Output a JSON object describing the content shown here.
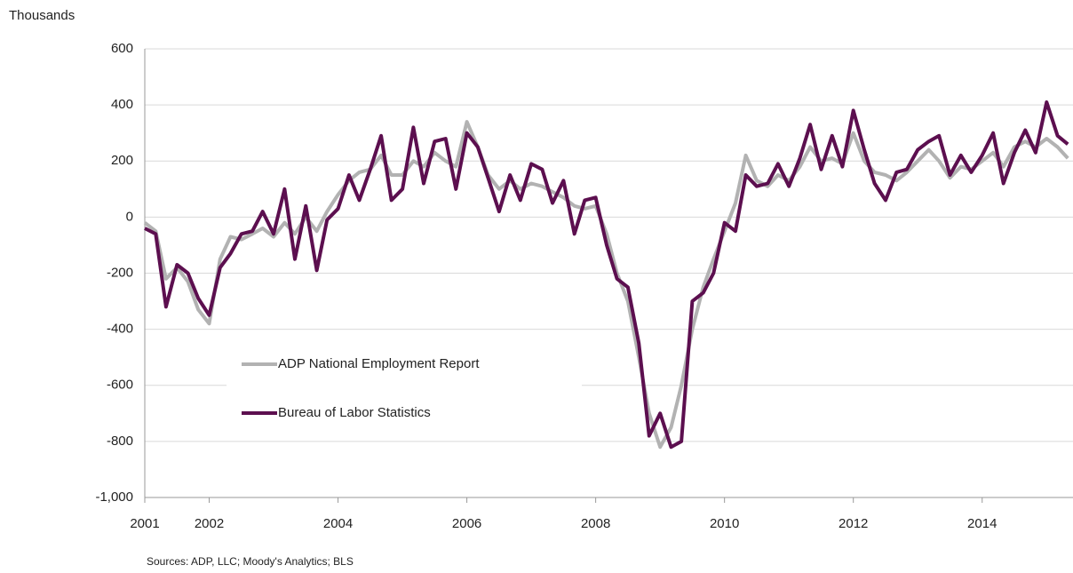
{
  "chart_data": {
    "type": "line",
    "y_label": "Thousands",
    "note": "Sources: ADP, LLC; Moody's Analytics; BLS",
    "x": [
      2001.0,
      2001.17,
      2001.33,
      2001.5,
      2001.67,
      2001.83,
      2002.0,
      2002.17,
      2002.33,
      2002.5,
      2002.67,
      2002.83,
      2003.0,
      2003.17,
      2003.33,
      2003.5,
      2003.67,
      2003.83,
      2004.0,
      2004.17,
      2004.33,
      2004.5,
      2004.67,
      2004.83,
      2005.0,
      2005.17,
      2005.33,
      2005.5,
      2005.67,
      2005.83,
      2006.0,
      2006.17,
      2006.33,
      2006.5,
      2006.67,
      2006.83,
      2007.0,
      2007.17,
      2007.33,
      2007.5,
      2007.67,
      2007.83,
      2008.0,
      2008.17,
      2008.33,
      2008.5,
      2008.67,
      2008.83,
      2009.0,
      2009.17,
      2009.33,
      2009.5,
      2009.67,
      2009.83,
      2010.0,
      2010.17,
      2010.33,
      2010.5,
      2010.67,
      2010.83,
      2011.0,
      2011.17,
      2011.33,
      2011.5,
      2011.67,
      2011.83,
      2012.0,
      2012.17,
      2012.33,
      2012.5,
      2012.67,
      2012.83,
      2013.0,
      2013.17,
      2013.33,
      2013.5,
      2013.67,
      2013.83,
      2014.0,
      2014.17,
      2014.33,
      2014.5,
      2014.67,
      2014.83,
      2015.0,
      2015.17,
      2015.33
    ],
    "series": [
      {
        "name": "ADP National Employment Report",
        "color": "#b2b2b2",
        "values": [
          -20,
          -50,
          -220,
          -180,
          -230,
          -330,
          -380,
          -150,
          -70,
          -80,
          -60,
          -40,
          -70,
          -20,
          -60,
          0,
          -50,
          20,
          80,
          130,
          160,
          170,
          220,
          150,
          150,
          200,
          180,
          230,
          200,
          180,
          340,
          250,
          150,
          100,
          130,
          100,
          120,
          110,
          90,
          70,
          40,
          30,
          40,
          -60,
          -200,
          -300,
          -500,
          -700,
          -820,
          -750,
          -600,
          -400,
          -250,
          -150,
          -50,
          50,
          220,
          130,
          110,
          150,
          130,
          180,
          250,
          200,
          210,
          190,
          300,
          200,
          160,
          150,
          130,
          160,
          200,
          240,
          200,
          140,
          180,
          170,
          200,
          230,
          180,
          250,
          270,
          250,
          280,
          250,
          210
        ]
      },
      {
        "name": "Bureau of Labor Statistics",
        "color": "#5c0f4f",
        "values": [
          -40,
          -60,
          -320,
          -170,
          -200,
          -290,
          -350,
          -180,
          -130,
          -60,
          -50,
          20,
          -60,
          100,
          -150,
          40,
          -190,
          -10,
          30,
          150,
          60,
          170,
          290,
          60,
          100,
          320,
          120,
          270,
          280,
          100,
          300,
          250,
          140,
          20,
          150,
          60,
          190,
          170,
          50,
          130,
          -60,
          60,
          70,
          -100,
          -220,
          -250,
          -450,
          -780,
          -700,
          -820,
          -800,
          -300,
          -270,
          -200,
          -20,
          -50,
          150,
          110,
          120,
          190,
          110,
          210,
          330,
          170,
          290,
          180,
          380,
          240,
          120,
          60,
          160,
          170,
          240,
          270,
          290,
          150,
          220,
          160,
          220,
          300,
          120,
          230,
          310,
          230,
          410,
          290,
          260
        ]
      }
    ],
    "xlim": [
      2001,
      2015.41
    ],
    "xticks": [
      2001,
      2002,
      2004,
      2006,
      2008,
      2010,
      2012,
      2014
    ],
    "ylim": [
      -1000,
      600
    ],
    "yticks": [
      {
        "value": -1000,
        "label": "-1,000"
      },
      -800,
      -600,
      -400,
      -200,
      0,
      200,
      400,
      600
    ],
    "grid": true,
    "legend": "center left"
  }
}
